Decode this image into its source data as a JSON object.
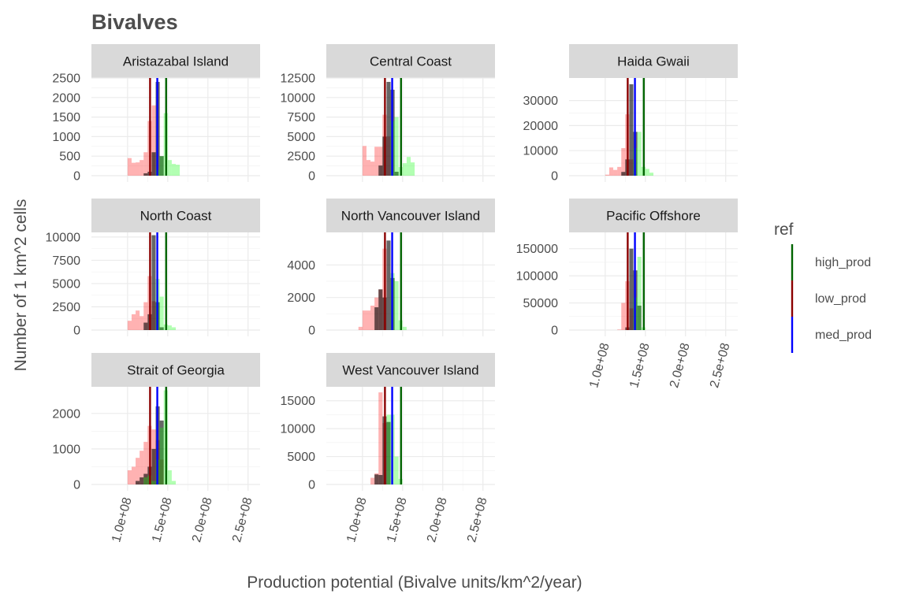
{
  "chart_data": {
    "type": "bar",
    "subtype": "faceted-histogram",
    "title": "Bivalves",
    "xlabel": "Production potential (Bivalve units/km^2/year)",
    "ylabel": "Number of 1 km^2 cells",
    "x_ticks": [
      100000000,
      150000000,
      200000000,
      250000000
    ],
    "x_tick_labels": [
      "1.0e+08",
      "1.5e+08",
      "2.0e+08",
      "2.5e+08"
    ],
    "xlim": [
      55000000,
      265000000
    ],
    "bin_width": 5000000,
    "grid": true,
    "legend": {
      "title": "ref",
      "position": "right",
      "items": [
        {
          "label": "high_prod",
          "color": "#006400"
        },
        {
          "label": "low_prod",
          "color": "#8b0000"
        },
        {
          "label": "med_prod",
          "color": "#0000ff"
        }
      ]
    },
    "series_colors": {
      "low": "#ff0000",
      "med": "#000000",
      "high": "#00ff00"
    },
    "facets": [
      {
        "name": "Aristazabal Island",
        "ylim": [
          0,
          2500
        ],
        "y_ticks": [
          0,
          500,
          1000,
          1500,
          2000,
          2500
        ],
        "x_tick_labels_shown": false,
        "lines": {
          "low": 128000000,
          "med": 137000000,
          "high": 148000000
        },
        "low": {
          "bins": [
            [
              100,
              450
            ],
            [
              105,
              330
            ],
            [
              110,
              340
            ],
            [
              115,
              400
            ],
            [
              120,
              600
            ],
            [
              125,
              1400
            ],
            [
              130,
              1800
            ]
          ]
        },
        "med": {
          "bins": [
            [
              120,
              60
            ],
            [
              125,
              100
            ],
            [
              130,
              600
            ],
            [
              135,
              2400
            ],
            [
              140,
              500
            ]
          ]
        },
        "high": {
          "bins": [
            [
              135,
              150
            ],
            [
              140,
              500
            ],
            [
              145,
              1600
            ],
            [
              150,
              400
            ],
            [
              155,
              300
            ],
            [
              160,
              280
            ]
          ]
        }
      },
      {
        "name": "Central Coast",
        "ylim": [
          0,
          12500
        ],
        "y_ticks": [
          0,
          2500,
          5000,
          7500,
          10000,
          12500
        ],
        "x_tick_labels_shown": false,
        "lines": {
          "low": 128000000,
          "med": 137000000,
          "high": 148000000
        },
        "low": {
          "bins": [
            [
              100,
              3800
            ],
            [
              105,
              2000
            ],
            [
              110,
              1800
            ],
            [
              115,
              3700
            ],
            [
              120,
              3700
            ],
            [
              125,
              7800
            ],
            [
              130,
              5000
            ]
          ]
        },
        "med": {
          "bins": [
            [
              120,
              1300
            ],
            [
              125,
              5000
            ],
            [
              130,
              12000
            ],
            [
              135,
              11000
            ],
            [
              140,
              500
            ]
          ]
        },
        "high": {
          "bins": [
            [
              135,
              7000
            ],
            [
              140,
              7500
            ],
            [
              145,
              1100
            ],
            [
              150,
              1600
            ],
            [
              155,
              2400
            ],
            [
              160,
              1700
            ]
          ]
        }
      },
      {
        "name": "Haida Gwaii",
        "ylim": [
          0,
          39000
        ],
        "y_ticks": [
          0,
          10000,
          20000,
          30000
        ],
        "x_tick_labels_shown": false,
        "lines": {
          "low": 128000000,
          "med": 137000000,
          "high": 148000000
        },
        "low": {
          "bins": [
            [
              100,
              400
            ],
            [
              105,
              3300
            ],
            [
              110,
              2300
            ],
            [
              115,
              3500
            ],
            [
              120,
              11000
            ],
            [
              125,
              24500
            ],
            [
              130,
              6500
            ]
          ]
        },
        "med": {
          "bins": [
            [
              120,
              1500
            ],
            [
              125,
              6500
            ],
            [
              130,
              36500
            ],
            [
              135,
              17500
            ]
          ]
        },
        "high": {
          "bins": [
            [
              135,
              11000
            ],
            [
              140,
              17500
            ],
            [
              145,
              3500
            ],
            [
              150,
              2700
            ],
            [
              155,
              1200
            ]
          ]
        }
      },
      {
        "name": "North Coast",
        "ylim": [
          0,
          10500
        ],
        "y_ticks": [
          0,
          2500,
          5000,
          7500,
          10000
        ],
        "x_tick_labels_shown": false,
        "lines": {
          "low": 128000000,
          "med": 137000000,
          "high": 148000000
        },
        "low": {
          "bins": [
            [
              100,
              1000
            ],
            [
              105,
              1700
            ],
            [
              110,
              2100
            ],
            [
              115,
              1500
            ],
            [
              120,
              3000
            ],
            [
              125,
              5800
            ],
            [
              130,
              3100
            ]
          ]
        },
        "med": {
          "bins": [
            [
              120,
              800
            ],
            [
              125,
              1700
            ],
            [
              130,
              10200
            ],
            [
              135,
              3000
            ],
            [
              140,
              300
            ]
          ]
        },
        "high": {
          "bins": [
            [
              135,
              5500
            ],
            [
              140,
              3600
            ],
            [
              145,
              600
            ],
            [
              150,
              500
            ],
            [
              155,
              300
            ]
          ]
        }
      },
      {
        "name": "North Vancouver Island",
        "ylim": [
          0,
          6000
        ],
        "y_ticks": [
          0,
          2000,
          4000
        ],
        "x_tick_labels_shown": false,
        "lines": {
          "low": 128000000,
          "med": 137000000,
          "high": 148000000
        },
        "low": {
          "bins": [
            [
              95,
              200
            ],
            [
              100,
              1200
            ],
            [
              105,
              1200
            ],
            [
              110,
              1500
            ],
            [
              115,
              2000
            ],
            [
              120,
              2500
            ],
            [
              125,
              5000
            ]
          ]
        },
        "med": {
          "bins": [
            [
              115,
              1400
            ],
            [
              120,
              2500
            ],
            [
              125,
              2000
            ],
            [
              130,
              5500
            ],
            [
              135,
              3200
            ]
          ]
        },
        "high": {
          "bins": [
            [
              135,
              3500
            ],
            [
              140,
              3000
            ],
            [
              145,
              600
            ],
            [
              150,
              200
            ]
          ]
        }
      },
      {
        "name": "Pacific Offshore",
        "ylim": [
          0,
          180000
        ],
        "y_ticks": [
          0,
          50000,
          100000,
          150000
        ],
        "x_tick_labels_shown": true,
        "lines": {
          "low": 128000000,
          "med": 137000000,
          "high": 148000000
        },
        "low": {
          "bins": [
            [
              115,
              1000
            ],
            [
              120,
              50000
            ],
            [
              125,
              90000
            ],
            [
              130,
              40000
            ]
          ]
        },
        "med": {
          "bins": [
            [
              125,
              5000
            ],
            [
              130,
              150000
            ],
            [
              135,
              110000
            ],
            [
              140,
              45000
            ]
          ]
        },
        "high": {
          "bins": [
            [
              135,
              60000
            ],
            [
              140,
              135000
            ],
            [
              145,
              5000
            ]
          ]
        }
      },
      {
        "name": "Strait of Georgia",
        "ylim": [
          0,
          2750
        ],
        "y_ticks": [
          0,
          1000,
          2000
        ],
        "x_tick_labels_shown": true,
        "lines": {
          "low": 128000000,
          "med": 137000000,
          "high": 148000000
        },
        "low": {
          "bins": [
            [
              100,
              400
            ],
            [
              105,
              500
            ],
            [
              110,
              750
            ],
            [
              115,
              950
            ],
            [
              120,
              1200
            ],
            [
              125,
              1650
            ],
            [
              130,
              1550
            ],
            [
              135,
              1250
            ],
            [
              140,
              700
            ]
          ]
        },
        "med": {
          "bins": [
            [
              110,
              100
            ],
            [
              115,
              200
            ],
            [
              120,
              300
            ],
            [
              125,
              500
            ],
            [
              130,
              1000
            ],
            [
              135,
              2200
            ],
            [
              140,
              1800
            ]
          ]
        },
        "high": {
          "bins": [
            [
              120,
              200
            ],
            [
              125,
              250
            ],
            [
              130,
              100
            ],
            [
              135,
              700
            ],
            [
              140,
              1600
            ],
            [
              145,
              2650
            ],
            [
              150,
              400
            ],
            [
              155,
              100
            ]
          ]
        }
      },
      {
        "name": "West Vancouver Island",
        "ylim": [
          0,
          17500
        ],
        "y_ticks": [
          0,
          5000,
          10000,
          15000
        ],
        "x_tick_labels_shown": true,
        "lines": {
          "low": 128000000,
          "med": 137000000,
          "high": 148000000
        },
        "low": {
          "bins": [
            [
              110,
              1200
            ],
            [
              115,
              2000
            ],
            [
              120,
              16500
            ],
            [
              125,
              11000
            ]
          ]
        },
        "med": {
          "bins": [
            [
              115,
              1800
            ],
            [
              120,
              1700
            ],
            [
              125,
              12200
            ],
            [
              130,
              11200
            ]
          ]
        },
        "high": {
          "bins": [
            [
              130,
              12500
            ],
            [
              135,
              12500
            ],
            [
              140,
              5000
            ],
            [
              145,
              1000
            ]
          ]
        }
      }
    ]
  }
}
